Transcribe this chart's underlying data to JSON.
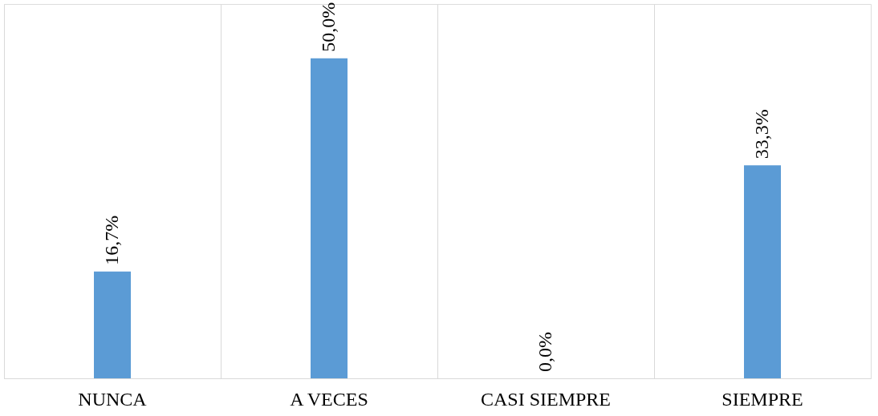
{
  "chart_data": {
    "type": "bar",
    "categories": [
      "NUNCA",
      "A VECES",
      "CASI SIEMPRE",
      "SIEMPRE"
    ],
    "values": [
      16.7,
      50.0,
      0.0,
      33.3
    ],
    "color": "#5b9bd5",
    "value_labels": [
      "16,7%",
      "50,0%",
      "0,0%",
      "33,3%"
    ],
    "grid": "x"
  }
}
